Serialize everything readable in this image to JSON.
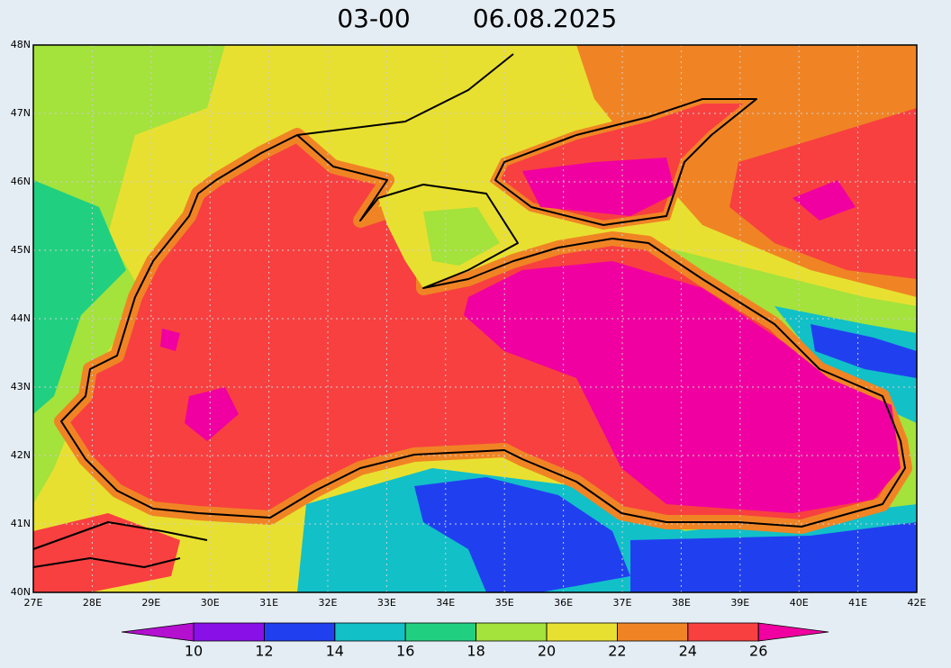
{
  "title": {
    "time": "03-00",
    "date": "06.08.2025"
  },
  "lat_labels": [
    "40N",
    "41N",
    "42N",
    "43N",
    "44N",
    "45N",
    "46N",
    "47N",
    "48N"
  ],
  "lon_labels": [
    "27E",
    "28E",
    "29E",
    "30E",
    "31E",
    "32E",
    "33E",
    "34E",
    "35E",
    "36E",
    "37E",
    "38E",
    "39E",
    "40E",
    "41E",
    "42E"
  ],
  "colorbar": {
    "levels": [
      10,
      12,
      14,
      16,
      18,
      20,
      22,
      24,
      26
    ],
    "colors": [
      "#b410d0",
      "#8a10e8",
      "#2040f0",
      "#12c0c8",
      "#20d080",
      "#a4e23c",
      "#e8e030",
      "#f08424",
      "#f84040",
      "#f000a0"
    ]
  }
}
